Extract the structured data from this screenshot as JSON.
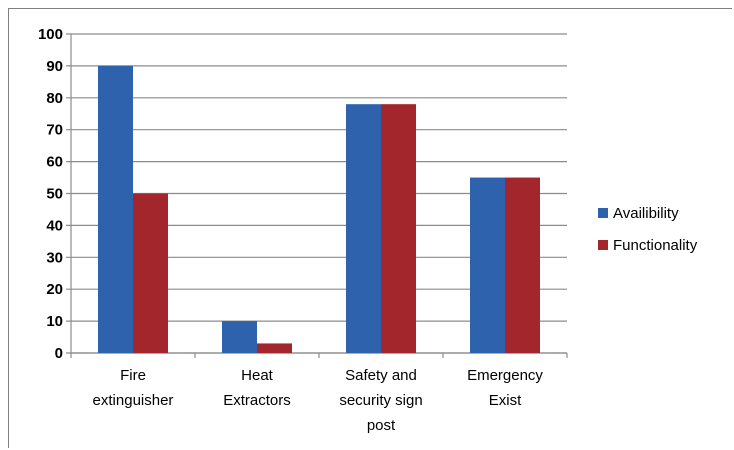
{
  "chart_data": {
    "type": "bar",
    "title": "",
    "xlabel": "",
    "ylabel": "",
    "categories": [
      [
        "Fire",
        "extinguisher"
      ],
      [
        "Heat",
        "Extractors"
      ],
      [
        "Safety and",
        "security sign",
        "post"
      ],
      [
        "Emergency",
        "Exist"
      ]
    ],
    "series": [
      {
        "name": "Availibility",
        "color": "#2e62ad",
        "values": [
          90,
          10,
          78,
          55
        ]
      },
      {
        "name": "Functionality",
        "color": "#a3262c",
        "values": [
          50,
          3,
          78,
          55
        ]
      }
    ],
    "ylim": [
      0,
      100
    ],
    "yticks": [
      0,
      10,
      20,
      30,
      40,
      50,
      60,
      70,
      80,
      90,
      100
    ],
    "grid": true,
    "legend": "right"
  }
}
